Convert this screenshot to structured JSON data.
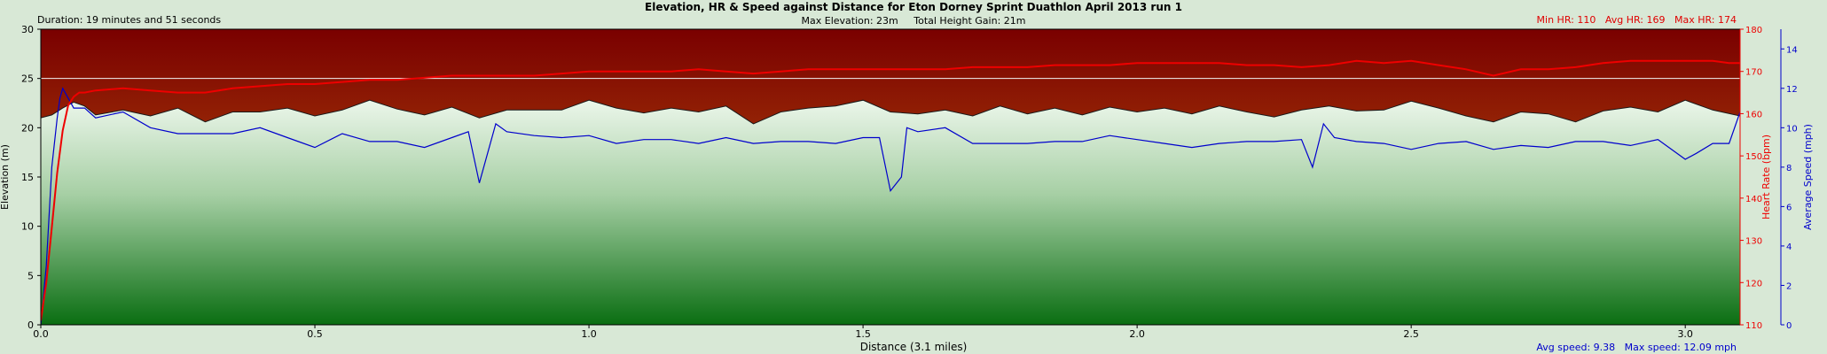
{
  "chart_data": {
    "type": "line",
    "title": "Elevation, HR & Speed against Distance for Eton Dorney Sprint Duathlon April 2013 run 1",
    "duration_text": "Duration: 19 minutes and 51 seconds",
    "max_elevation_text": "Max Elevation: 23m",
    "height_gain_text": "Total Height Gain: 21m",
    "hr_summary": {
      "min": "Min HR: 110",
      "avg": "Avg HR: 169",
      "max": "Max HR: 174"
    },
    "speed_summary": {
      "avg": "Avg speed: 9.38",
      "max": "Max speed: 12.09 mph"
    },
    "xlabel": "Distance (3.1 miles)",
    "ylabel_left": "Elevation (m)",
    "ylabel_hr": "Heart Rate (bpm)",
    "ylabel_speed": "Average Speed (mph)",
    "xlim": [
      0,
      3.1
    ],
    "x_ticks": [
      "0.0",
      "0.5",
      "1.0",
      "1.5",
      "2.0",
      "2.5",
      "3.0"
    ],
    "ylim_elevation": [
      0,
      30
    ],
    "y_ticks_elevation": [
      "0",
      "5",
      "10",
      "15",
      "20",
      "25",
      "30"
    ],
    "ylim_hr": [
      110,
      180
    ],
    "y_ticks_hr": [
      "110",
      "120",
      "130",
      "140",
      "150",
      "160",
      "170",
      "180"
    ],
    "ylim_speed": [
      0,
      15
    ],
    "y_ticks_speed": [
      "0",
      "2",
      "4",
      "6",
      "8",
      "10",
      "12",
      "14"
    ],
    "reference_line_elevation": 25,
    "colors": {
      "heart_rate": "#ee0000",
      "speed": "#0000cc",
      "elevation_fill_top": "#f4fbf3",
      "elevation_fill_bottom": "#0a6e12",
      "sky_top": "#7a0000",
      "sky_bottom": "#c86a10"
    },
    "series": [
      {
        "key": "elevation",
        "x": [
          0,
          0.02,
          0.04,
          0.06,
          0.08,
          0.1,
          0.15,
          0.2,
          0.25,
          0.3,
          0.35,
          0.4,
          0.45,
          0.5,
          0.55,
          0.6,
          0.65,
          0.7,
          0.75,
          0.8,
          0.85,
          0.9,
          0.95,
          1.0,
          1.05,
          1.1,
          1.15,
          1.2,
          1.25,
          1.3,
          1.35,
          1.4,
          1.45,
          1.5,
          1.55,
          1.6,
          1.65,
          1.7,
          1.75,
          1.8,
          1.85,
          1.9,
          1.95,
          2.0,
          2.05,
          2.1,
          2.15,
          2.2,
          2.25,
          2.3,
          2.35,
          2.4,
          2.45,
          2.5,
          2.55,
          2.6,
          2.65,
          2.7,
          2.75,
          2.8,
          2.85,
          2.9,
          2.95,
          3.0,
          3.05,
          3.1
        ],
        "values": [
          21,
          21.3,
          22,
          22.6,
          22.2,
          21.3,
          21.8,
          21.2,
          22,
          20.6,
          21.6,
          21.6,
          22,
          21.2,
          21.8,
          22.8,
          21.9,
          21.3,
          22.1,
          21,
          21.8,
          21.8,
          21.8,
          22.8,
          22,
          21.5,
          22,
          21.6,
          22.2,
          20.4,
          21.6,
          22,
          22.2,
          22.8,
          21.6,
          21.4,
          21.8,
          21.2,
          22.2,
          21.4,
          22,
          21.3,
          22.1,
          21.6,
          22,
          21.4,
          22.2,
          21.6,
          21.1,
          21.8,
          22.2,
          21.7,
          21.8,
          22.7,
          22,
          21.2,
          20.6,
          21.6,
          21.4,
          20.6,
          21.7,
          22.1,
          21.6,
          22.8,
          21.8,
          21.2
        ]
      },
      {
        "key": "heart_rate",
        "x": [
          0,
          0.01,
          0.02,
          0.03,
          0.04,
          0.05,
          0.06,
          0.07,
          0.08,
          0.1,
          0.15,
          0.2,
          0.25,
          0.3,
          0.35,
          0.4,
          0.45,
          0.5,
          0.55,
          0.6,
          0.65,
          0.7,
          0.75,
          0.8,
          0.85,
          0.9,
          0.95,
          1.0,
          1.05,
          1.1,
          1.15,
          1.2,
          1.25,
          1.3,
          1.35,
          1.4,
          1.45,
          1.5,
          1.55,
          1.6,
          1.65,
          1.7,
          1.75,
          1.8,
          1.85,
          1.9,
          1.95,
          2.0,
          2.05,
          2.1,
          2.15,
          2.2,
          2.25,
          2.3,
          2.35,
          2.4,
          2.45,
          2.5,
          2.55,
          2.6,
          2.65,
          2.7,
          2.75,
          2.8,
          2.85,
          2.9,
          2.95,
          3.0,
          3.05,
          3.08,
          3.1
        ],
        "values": [
          111,
          120,
          133,
          146,
          156,
          162,
          164,
          165,
          165,
          165.5,
          166,
          165.5,
          165,
          165,
          166,
          166.5,
          167,
          167,
          167.5,
          168,
          168,
          168.5,
          169,
          169,
          169,
          169,
          169.5,
          170,
          170,
          170,
          170,
          170.5,
          170,
          169.5,
          170,
          170.5,
          170.5,
          170.5,
          170.5,
          170.5,
          170.5,
          171,
          171,
          171,
          171.5,
          171.5,
          171.5,
          172,
          172,
          172,
          172,
          171.5,
          171.5,
          171,
          171.5,
          172.5,
          172,
          172.5,
          171.5,
          170.5,
          169,
          170.5,
          170.5,
          171,
          172,
          172.5,
          172.5,
          172.5,
          172.5,
          172,
          172
        ]
      },
      {
        "key": "speed",
        "x": [
          0,
          0.01,
          0.02,
          0.03,
          0.035,
          0.04,
          0.05,
          0.06,
          0.08,
          0.1,
          0.15,
          0.2,
          0.25,
          0.3,
          0.35,
          0.4,
          0.45,
          0.5,
          0.55,
          0.6,
          0.65,
          0.7,
          0.75,
          0.78,
          0.8,
          0.83,
          0.85,
          0.9,
          0.95,
          1.0,
          1.05,
          1.1,
          1.15,
          1.2,
          1.25,
          1.3,
          1.35,
          1.4,
          1.45,
          1.5,
          1.53,
          1.55,
          1.57,
          1.58,
          1.6,
          1.65,
          1.7,
          1.75,
          1.8,
          1.85,
          1.9,
          1.95,
          2.0,
          2.05,
          2.1,
          2.15,
          2.2,
          2.25,
          2.3,
          2.32,
          2.34,
          2.36,
          2.4,
          2.45,
          2.5,
          2.55,
          2.6,
          2.65,
          2.7,
          2.75,
          2.8,
          2.85,
          2.9,
          2.95,
          3.0,
          3.02,
          3.05,
          3.08,
          3.1
        ],
        "values": [
          0,
          3,
          8,
          10.5,
          11.5,
          12,
          11.5,
          11,
          11,
          10.5,
          10.8,
          10,
          9.7,
          9.7,
          9.7,
          10,
          9.5,
          9,
          9.7,
          9.3,
          9.3,
          9,
          9.5,
          9.8,
          7.2,
          10.2,
          9.8,
          9.6,
          9.5,
          9.6,
          9.2,
          9.4,
          9.4,
          9.2,
          9.5,
          9.2,
          9.3,
          9.3,
          9.2,
          9.5,
          9.5,
          6.8,
          7.5,
          10,
          9.8,
          10,
          9.2,
          9.2,
          9.2,
          9.3,
          9.3,
          9.6,
          9.4,
          9.2,
          9,
          9.2,
          9.3,
          9.3,
          9.4,
          8,
          10.2,
          9.5,
          9.3,
          9.2,
          8.9,
          9.2,
          9.3,
          8.9,
          9.1,
          9,
          9.3,
          9.3,
          9.1,
          9.4,
          8.4,
          8.7,
          9.2,
          9.2,
          10.8
        ]
      }
    ]
  }
}
